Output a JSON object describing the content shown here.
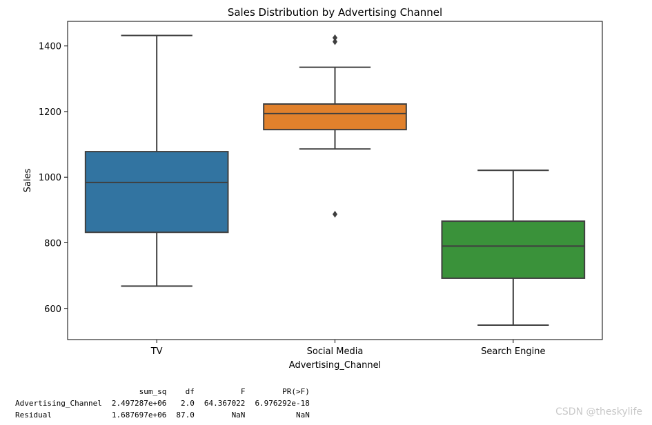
{
  "chart_data": {
    "type": "boxplot",
    "title": "Sales Distribution by Advertising Channel",
    "xlabel": "Advertising_Channel",
    "ylabel": "Sales",
    "ylim": [
      505,
      1475
    ],
    "yticks": [
      600,
      800,
      1000,
      1200,
      1400
    ],
    "categories": [
      "TV",
      "Social Media",
      "Search Engine"
    ],
    "boxes": [
      {
        "name": "TV",
        "whisker_low": 668,
        "q1": 832,
        "median": 984,
        "q3": 1078,
        "whisker_high": 1432,
        "outliers": [],
        "color": "#3274a1"
      },
      {
        "name": "Social Media",
        "whisker_low": 1086,
        "q1": 1145,
        "median": 1194,
        "q3": 1223,
        "whisker_high": 1335,
        "outliers": [
          1425,
          1413,
          887
        ],
        "color": "#e1812c"
      },
      {
        "name": "Search Engine",
        "whisker_low": 549,
        "q1": 692,
        "median": 790,
        "q3": 866,
        "whisker_high": 1021,
        "outliers": [],
        "color": "#3a923a"
      }
    ]
  },
  "anova_table": {
    "columns": [
      "sum_sq",
      "df",
      "F",
      "PR(>F)"
    ],
    "rows": [
      {
        "name": "Advertising_Channel",
        "values": [
          "2.497287e+06",
          "2.0",
          "64.367022",
          "6.976292e-18"
        ]
      },
      {
        "name": "Residual",
        "values": [
          "1.687697e+06",
          "87.0",
          "NaN",
          "NaN"
        ]
      }
    ]
  },
  "watermark": "CSDN @theskylife"
}
